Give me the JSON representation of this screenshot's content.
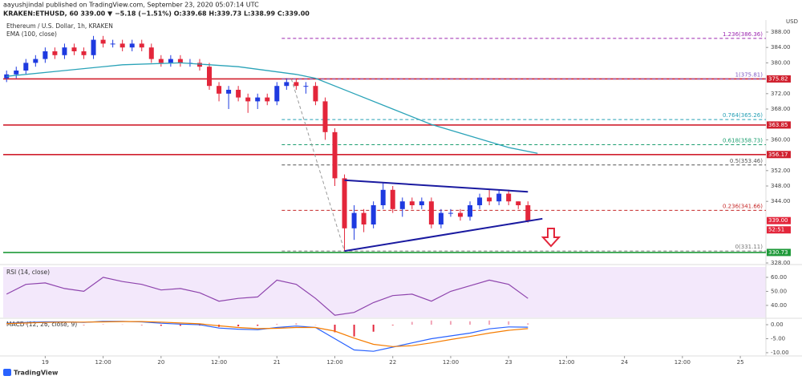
{
  "header": {
    "publisher": "aayushjindal published on TradingView.com, September 23, 2020 05:07:14 UTC",
    "quote": "KRAKEN:ETHUSD, 60  339.00  ▼ −5.18 (−1.51%)  O:339.68  H:339.73  L:338.99  C:339.00"
  },
  "footer": {
    "brand": "TradingView"
  },
  "chart_data": [
    {
      "type": "candlestick",
      "title": "Ethereum / U.S. Dollar, 1h, KRAKEN",
      "currency": "USD",
      "up_color": "#1e3ae0",
      "down_color": "#e3263b",
      "x": [
        -8,
        -6,
        -4,
        -2,
        0,
        2,
        4,
        6,
        8,
        10,
        12,
        14,
        16,
        18,
        20,
        22,
        24,
        26,
        28,
        30,
        32,
        34,
        36,
        38,
        40,
        42,
        44,
        46,
        48,
        50,
        52,
        54,
        56,
        58,
        60,
        62,
        64,
        66,
        68,
        70,
        72,
        74,
        76,
        78,
        80,
        82,
        84,
        86,
        88,
        90,
        92,
        94,
        96,
        98,
        100
      ],
      "open": [
        376,
        377,
        378,
        380,
        381,
        383,
        382,
        384,
        383,
        382,
        386,
        385,
        385,
        384,
        385,
        384,
        381,
        380,
        381,
        380,
        380,
        379,
        374,
        372,
        373,
        371,
        370,
        371,
        370,
        374,
        375,
        374,
        374,
        370,
        362,
        350,
        337,
        341,
        338,
        343,
        347,
        342,
        344,
        343,
        344,
        338,
        341,
        341,
        340,
        343,
        345,
        344,
        346,
        344,
        343
      ],
      "high": [
        378,
        379,
        381,
        382,
        384,
        384,
        385,
        385,
        384,
        387,
        387,
        386,
        386,
        386,
        386,
        385,
        382,
        382,
        382,
        381,
        381,
        380,
        375,
        374,
        374,
        372,
        372,
        372,
        375,
        376,
        376,
        375,
        375,
        371,
        363,
        351,
        343,
        342,
        344,
        349,
        348,
        345,
        345,
        345,
        345,
        342,
        342,
        342,
        344,
        346,
        347,
        347,
        347,
        344,
        344
      ],
      "low": [
        375,
        376,
        377,
        379,
        380,
        381,
        381,
        382,
        381,
        381,
        384,
        384,
        383,
        383,
        383,
        380,
        379,
        379,
        379,
        379,
        378,
        373,
        370,
        368,
        370,
        367,
        368,
        369,
        369,
        373,
        373,
        372,
        369,
        360,
        348,
        331.1,
        334,
        336,
        337,
        342,
        341,
        340,
        342,
        342,
        337,
        337,
        340,
        339,
        339,
        342,
        343,
        343,
        343,
        342,
        338.5
      ],
      "close": [
        377,
        378,
        380,
        381,
        383,
        382,
        384,
        383,
        382,
        386,
        385,
        385,
        384,
        385,
        384,
        381,
        380,
        381,
        380,
        380,
        379,
        374,
        372,
        373,
        371,
        370,
        371,
        370,
        374,
        375,
        374,
        374,
        370,
        362,
        350,
        337,
        341,
        338,
        343,
        347,
        342,
        344,
        343,
        344,
        338,
        341,
        341,
        340,
        343,
        345,
        344,
        346,
        344,
        343,
        339
      ],
      "ema": {
        "label": "EMA (100, close)",
        "color": "#2aa3b8",
        "x": [
          -8,
          4,
          16,
          28,
          40,
          52,
          56,
          64,
          72,
          80,
          88,
          96,
          102
        ],
        "values": [
          376.5,
          378,
          379.5,
          380,
          379,
          377,
          376,
          372,
          368,
          364,
          361,
          358,
          356.5
        ]
      },
      "xlim": [
        -8.7,
        149.3
      ],
      "ylim": [
        328,
        390.5
      ],
      "xticks": [
        {
          "value": 0,
          "label": "19"
        },
        {
          "value": 12,
          "label": "12:00"
        },
        {
          "value": 24,
          "label": "20"
        },
        {
          "value": 36,
          "label": "12:00"
        },
        {
          "value": 48,
          "label": "21"
        },
        {
          "value": 60,
          "label": "12:00"
        },
        {
          "value": 72,
          "label": "22"
        },
        {
          "value": 84,
          "label": "12:00"
        },
        {
          "value": 96,
          "label": "23"
        },
        {
          "value": 108,
          "label": "12:00"
        },
        {
          "value": 120,
          "label": "24"
        },
        {
          "value": 132,
          "label": "12:00"
        },
        {
          "value": 144,
          "label": "25"
        }
      ],
      "yticks": [
        {
          "value": 388,
          "label": "388.00"
        },
        {
          "value": 384,
          "label": "384.00"
        },
        {
          "value": 380,
          "label": "380.00"
        },
        {
          "value": 372,
          "label": "372.00"
        },
        {
          "value": 368,
          "label": "368.00"
        },
        {
          "value": 360,
          "label": "360.00"
        },
        {
          "value": 352,
          "label": "352.00"
        },
        {
          "value": 348,
          "label": "348.00"
        },
        {
          "value": 344,
          "label": "344.00"
        },
        {
          "value": 328,
          "label": "328.00"
        }
      ],
      "levels": [
        {
          "value": 375.82,
          "color": "#d0202e"
        },
        {
          "value": 363.85,
          "color": "#d0202e"
        },
        {
          "value": 356.17,
          "color": "#d0202e"
        },
        {
          "value": 330.73,
          "color": "#1f9a3a"
        }
      ],
      "price_tags": [
        {
          "value": 375.82,
          "color": "#d0202e"
        },
        {
          "value": 363.85,
          "color": "#d0202e"
        },
        {
          "value": 356.17,
          "color": "#d0202e"
        },
        {
          "value": 339,
          "label": "339.00",
          "color": "#e3263b"
        },
        {
          "value": 336.6,
          "label": "52:51",
          "color": "#e3263b"
        },
        {
          "value": 330.73,
          "color": "#1f9a3a"
        }
      ],
      "fib": {
        "start": 49,
        "levels": [
          {
            "value": 386.36,
            "label": "1.236(386.36)",
            "color": "#9c27b0"
          },
          {
            "value": 375.81,
            "label": "1(375.81)",
            "color": "#7e57c2"
          },
          {
            "value": 365.26,
            "label": "0.764(365.26)",
            "color": "#26a0b5"
          },
          {
            "value": 358.73,
            "label": "0.618(358.73)",
            "color": "#1b9e6f"
          },
          {
            "value": 353.46,
            "label": "0.5(353.46)",
            "color": "#555555"
          },
          {
            "value": 341.66,
            "label": "0.236(341.66)",
            "color": "#c62828"
          },
          {
            "value": 331.11,
            "label": "0(331.11)",
            "color": "#777777"
          }
        ]
      },
      "trendlines": [
        {
          "from": [
            62,
            349.5
          ],
          "to": [
            100,
            346.5
          ],
          "color": "#1a1aa0"
        },
        {
          "from": [
            62,
            331.1
          ],
          "to": [
            103,
            339.5
          ],
          "color": "#1a1aa0"
        }
      ],
      "guide": {
        "from": [
          51,
          375.8
        ],
        "to": [
          62,
          331.1
        ],
        "color": "#999999"
      }
    },
    {
      "type": "line",
      "title": "RSI (14, close)",
      "x": [
        -8,
        -4,
        0,
        4,
        8,
        12,
        16,
        20,
        24,
        28,
        32,
        36,
        40,
        44,
        48,
        52,
        56,
        60,
        64,
        68,
        72,
        76,
        80,
        84,
        88,
        92,
        96,
        100
      ],
      "series": [
        {
          "color": "#8e44ad",
          "values": [
            48,
            55,
            56,
            52,
            50,
            60,
            57,
            55,
            51,
            52,
            49,
            43,
            45,
            46,
            58,
            55,
            45,
            33,
            35,
            42,
            47,
            48,
            43,
            50,
            54,
            58,
            55,
            45
          ]
        }
      ],
      "ylim": [
        31.4,
        67.4
      ],
      "yticks": [
        {
          "value": 60,
          "label": "60.00"
        },
        {
          "value": 50,
          "label": "50.00"
        },
        {
          "value": 40,
          "label": "40.00"
        }
      ]
    },
    {
      "type": "line",
      "title": "MACD (12, 26, close, 9)",
      "x": [
        -8,
        -4,
        0,
        4,
        8,
        12,
        16,
        20,
        24,
        28,
        32,
        36,
        40,
        44,
        48,
        52,
        56,
        60,
        64,
        68,
        72,
        76,
        80,
        84,
        88,
        92,
        96,
        100
      ],
      "histogram": {
        "up_color": "#f2a6b8",
        "down_color": "#e3263b",
        "values": [
          0.1,
          0.2,
          0.2,
          0.1,
          -0.1,
          0.2,
          0.1,
          -0.1,
          -0.4,
          -0.4,
          -0.3,
          -0.8,
          -0.6,
          -0.4,
          0.3,
          0.5,
          0,
          -2.7,
          -4.2,
          -2.5,
          -0.2,
          1,
          1.5,
          1.3,
          1.2,
          1.5,
          1.2,
          0.5
        ]
      },
      "series": [
        {
          "color": "#2962ff",
          "values": [
            0.5,
            0.8,
            1,
            1,
            0.8,
            1.2,
            1.2,
            1,
            0.5,
            0.2,
            0,
            -1.2,
            -1.6,
            -1.8,
            -1,
            -0.5,
            -1,
            -5,
            -9,
            -9.5,
            -8,
            -6.5,
            -5,
            -4,
            -3,
            -1.5,
            -0.8,
            -0.9
          ]
        },
        {
          "color": "#f57c00",
          "values": [
            0.4,
            0.6,
            0.8,
            0.9,
            0.9,
            1,
            1.1,
            1.1,
            0.9,
            0.6,
            0.3,
            -0.4,
            -1,
            -1.4,
            -1.3,
            -1,
            -1,
            -2.3,
            -4.8,
            -7,
            -7.8,
            -7.5,
            -6.5,
            -5.3,
            -4.2,
            -3,
            -2,
            -1.4
          ]
        }
      ],
      "ylim": [
        -10.3,
        2
      ],
      "yticks": [
        {
          "value": 0,
          "label": "0.00"
        },
        {
          "value": -5,
          "label": "-5.00"
        },
        {
          "value": -10,
          "label": "-10.00"
        }
      ]
    }
  ]
}
